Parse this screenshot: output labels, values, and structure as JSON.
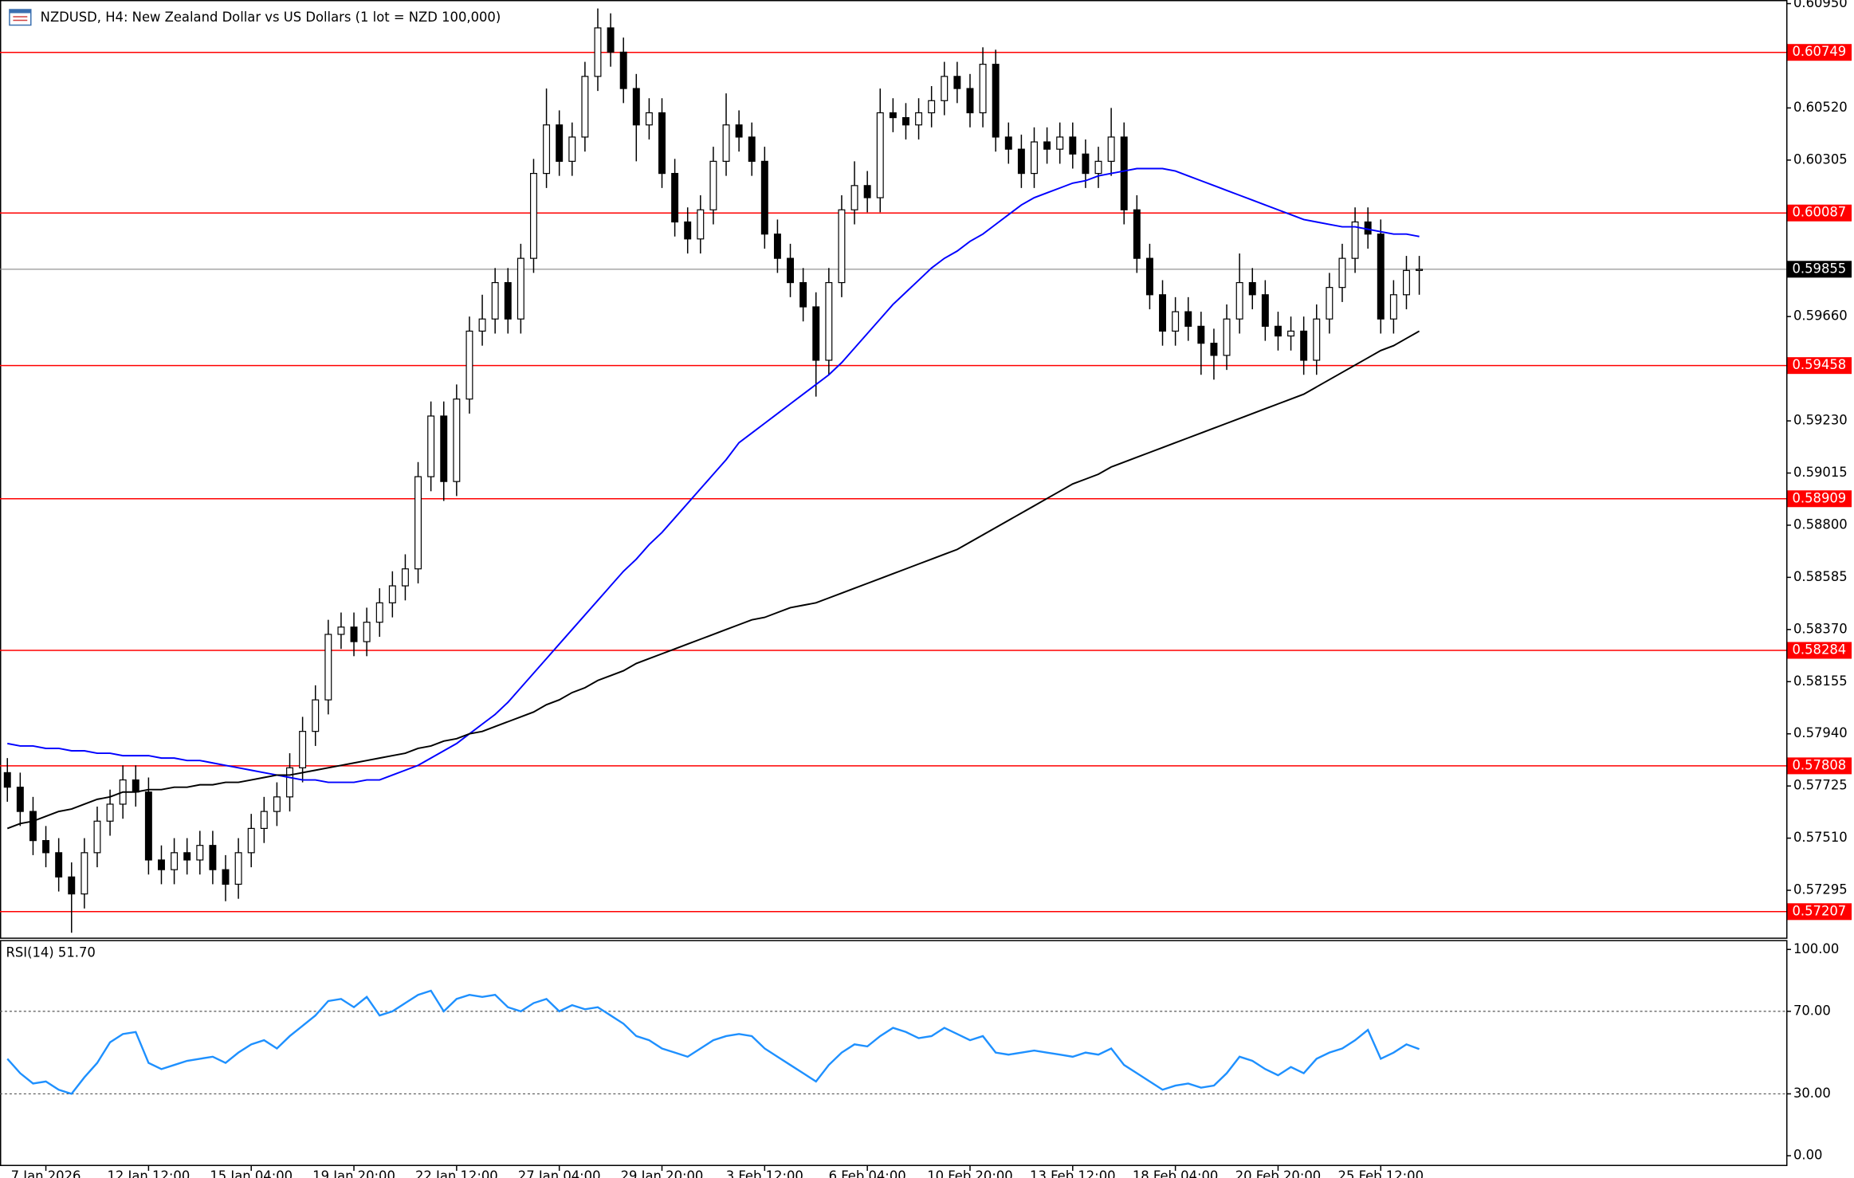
{
  "chart_data": [
    {
      "type": "candlestick",
      "title": "NZDUSD, H4:  New Zealand Dollar vs US Dollars (1 lot = NZD 100,000)",
      "categories": [
        null,
        null,
        null,
        "7 Jan 2026",
        null,
        null,
        null,
        null,
        null,
        null,
        null,
        "12 Jan 12:00",
        null,
        null,
        null,
        null,
        null,
        null,
        null,
        "15 Jan 04:00",
        null,
        null,
        null,
        null,
        null,
        null,
        null,
        "19 Jan 20:00",
        null,
        null,
        null,
        null,
        null,
        null,
        null,
        "22 Jan 12:00",
        null,
        null,
        null,
        null,
        null,
        null,
        null,
        "27 Jan 04:00",
        null,
        null,
        null,
        null,
        null,
        null,
        null,
        "29 Jan 20:00",
        null,
        null,
        null,
        null,
        null,
        null,
        null,
        "3 Feb 12:00",
        null,
        null,
        null,
        null,
        null,
        null,
        null,
        "6 Feb 04:00",
        null,
        null,
        null,
        null,
        null,
        null,
        null,
        "10 Feb 20:00",
        null,
        null,
        null,
        null,
        null,
        null,
        null,
        "13 Feb 12:00",
        null,
        null,
        null,
        null,
        null,
        null,
        null,
        "18 Feb 04:00",
        null,
        null,
        null,
        null,
        null,
        null,
        null,
        "20 Feb 20:00",
        null,
        null,
        null,
        null,
        null,
        null,
        null,
        "25 Feb 12:00",
        null,
        null,
        null
      ],
      "open": [
        0.5778,
        0.5772,
        0.5762,
        0.575,
        0.5745,
        0.5735,
        0.5728,
        0.5745,
        0.5758,
        0.5765,
        0.5775,
        0.577,
        0.5742,
        0.5738,
        0.5745,
        0.5742,
        0.5748,
        0.5738,
        0.5732,
        0.5745,
        0.5755,
        0.5762,
        0.5768,
        0.578,
        0.5795,
        0.5808,
        0.5835,
        0.5838,
        0.5832,
        0.584,
        0.5848,
        0.5855,
        0.5862,
        0.59,
        0.5925,
        0.5898,
        0.5932,
        0.596,
        0.5965,
        0.598,
        0.5965,
        0.599,
        0.6025,
        0.6045,
        0.603,
        0.604,
        0.6065,
        0.6085,
        0.6075,
        0.606,
        0.6045,
        0.605,
        0.6025,
        0.6005,
        0.5998,
        0.601,
        0.603,
        0.6045,
        0.604,
        0.603,
        0.6,
        0.599,
        0.598,
        0.597,
        0.5948,
        0.598,
        0.601,
        0.602,
        0.6015,
        0.605,
        0.6048,
        0.6045,
        0.605,
        0.6055,
        0.6065,
        0.606,
        0.605,
        0.607,
        0.604,
        0.6035,
        0.6025,
        0.6038,
        0.6035,
        0.604,
        0.6033,
        0.6025,
        0.603,
        0.604,
        0.601,
        0.599,
        0.5975,
        0.596,
        0.5968,
        0.5962,
        0.5955,
        0.595,
        0.5965,
        0.598,
        0.5975,
        0.5962,
        0.5958,
        0.596,
        0.5948,
        0.5965,
        0.5978,
        0.599,
        0.6005,
        0.6,
        0.5965,
        0.5975,
        0.5985
      ],
      "high": [
        0.5784,
        0.5778,
        0.5768,
        0.5756,
        0.5751,
        0.5741,
        0.5751,
        0.5764,
        0.5771,
        0.5781,
        0.5781,
        0.5776,
        0.5748,
        0.5751,
        0.5751,
        0.5754,
        0.5754,
        0.5744,
        0.5751,
        0.5761,
        0.5768,
        0.5774,
        0.5786,
        0.5801,
        0.5814,
        0.5841,
        0.5844,
        0.5844,
        0.5846,
        0.5854,
        0.5861,
        0.5868,
        0.5906,
        0.5931,
        0.5931,
        0.5938,
        0.5966,
        0.5975,
        0.5986,
        0.5986,
        0.5996,
        0.6031,
        0.606,
        0.6051,
        0.6046,
        0.6071,
        0.6093,
        0.6091,
        0.6081,
        0.6066,
        0.6056,
        0.6056,
        0.6031,
        0.6011,
        0.6016,
        0.6036,
        0.6058,
        0.6051,
        0.6046,
        0.6036,
        0.6006,
        0.5996,
        0.5986,
        0.5976,
        0.5986,
        0.6016,
        0.603,
        0.6026,
        0.606,
        0.6056,
        0.6054,
        0.6056,
        0.6061,
        0.6071,
        0.6071,
        0.6066,
        0.6077,
        0.6076,
        0.6046,
        0.6041,
        0.6044,
        0.6044,
        0.6046,
        0.6046,
        0.6039,
        0.6036,
        0.6052,
        0.6046,
        0.6016,
        0.5996,
        0.5981,
        0.5974,
        0.5974,
        0.5968,
        0.5961,
        0.5971,
        0.5992,
        0.5986,
        0.5981,
        0.5968,
        0.5966,
        0.5966,
        0.5971,
        0.5984,
        0.5996,
        0.6011,
        0.6011,
        0.6006,
        0.5981,
        0.5991,
        0.5991
      ],
      "low": [
        0.5766,
        0.5756,
        0.5744,
        0.5739,
        0.5729,
        0.5712,
        0.5722,
        0.5739,
        0.5752,
        0.5759,
        0.5764,
        0.5736,
        0.5732,
        0.5732,
        0.5736,
        0.5736,
        0.5732,
        0.5725,
        0.5726,
        0.5739,
        0.5749,
        0.5756,
        0.5762,
        0.5774,
        0.5789,
        0.5802,
        0.5829,
        0.5826,
        0.5826,
        0.5834,
        0.5842,
        0.5849,
        0.5856,
        0.5894,
        0.589,
        0.5892,
        0.5926,
        0.5954,
        0.5959,
        0.5959,
        0.5959,
        0.5984,
        0.6019,
        0.6024,
        0.6024,
        0.6034,
        0.6059,
        0.6069,
        0.6054,
        0.603,
        0.6039,
        0.6019,
        0.5999,
        0.5992,
        0.5992,
        0.6004,
        0.6024,
        0.6034,
        0.6024,
        0.5994,
        0.5984,
        0.5974,
        0.5964,
        0.5933,
        0.5942,
        0.5974,
        0.6004,
        0.6009,
        0.6009,
        0.6042,
        0.6039,
        0.6039,
        0.6044,
        0.6049,
        0.6054,
        0.6044,
        0.6044,
        0.6034,
        0.6029,
        0.6019,
        0.6019,
        0.6029,
        0.6029,
        0.6027,
        0.6019,
        0.6019,
        0.6024,
        0.6004,
        0.5984,
        0.5969,
        0.5954,
        0.5954,
        0.5956,
        0.5942,
        0.594,
        0.5944,
        0.5959,
        0.5969,
        0.5956,
        0.5952,
        0.5952,
        0.5942,
        0.5942,
        0.5959,
        0.5972,
        0.5984,
        0.5994,
        0.5959,
        0.5959,
        0.5969,
        0.5975
      ],
      "close": [
        0.5772,
        0.5762,
        0.575,
        0.5745,
        0.5735,
        0.5728,
        0.5745,
        0.5758,
        0.5765,
        0.5775,
        0.577,
        0.5742,
        0.5738,
        0.5745,
        0.5742,
        0.5748,
        0.5738,
        0.5732,
        0.5745,
        0.5755,
        0.5762,
        0.5768,
        0.578,
        0.5795,
        0.5808,
        0.5835,
        0.5838,
        0.5832,
        0.584,
        0.5848,
        0.5855,
        0.5862,
        0.59,
        0.5925,
        0.5898,
        0.5932,
        0.596,
        0.5965,
        0.598,
        0.5965,
        0.599,
        0.6025,
        0.6045,
        0.603,
        0.604,
        0.6065,
        0.6085,
        0.6075,
        0.606,
        0.6045,
        0.605,
        0.6025,
        0.6005,
        0.5998,
        0.601,
        0.603,
        0.6045,
        0.604,
        0.603,
        0.6,
        0.599,
        0.598,
        0.597,
        0.5948,
        0.598,
        0.601,
        0.602,
        0.6015,
        0.605,
        0.6048,
        0.6045,
        0.605,
        0.6055,
        0.6065,
        0.606,
        0.605,
        0.607,
        0.604,
        0.6035,
        0.6025,
        0.6038,
        0.6035,
        0.604,
        0.6033,
        0.6025,
        0.603,
        0.604,
        0.601,
        0.599,
        0.5975,
        0.596,
        0.5968,
        0.5962,
        0.5955,
        0.595,
        0.5965,
        0.598,
        0.5975,
        0.5962,
        0.5958,
        0.596,
        0.5948,
        0.5965,
        0.5978,
        0.599,
        0.6005,
        0.6,
        0.5965,
        0.5975,
        0.5985,
        0.59855
      ],
      "series": [
        {
          "color": "#0000ff",
          "values": [
            0.579,
            0.5789,
            0.5789,
            0.5788,
            0.5788,
            0.5787,
            0.5787,
            0.5786,
            0.5786,
            0.5785,
            0.5785,
            0.5785,
            0.5784,
            0.5784,
            0.5783,
            0.5783,
            0.5782,
            0.5781,
            0.578,
            0.5779,
            0.5778,
            0.5777,
            0.5776,
            0.5775,
            0.5775,
            0.5774,
            0.5774,
            0.5774,
            0.5775,
            0.5775,
            0.5777,
            0.5779,
            0.5781,
            0.5784,
            0.5787,
            0.579,
            0.5794,
            0.5798,
            0.5802,
            0.5807,
            0.5813,
            0.5819,
            0.5825,
            0.5831,
            0.5837,
            0.5843,
            0.5849,
            0.5855,
            0.5861,
            0.5866,
            0.5872,
            0.5877,
            0.5883,
            0.5889,
            0.5895,
            0.5901,
            0.5907,
            0.5914,
            0.5918,
            0.5922,
            0.5926,
            0.593,
            0.5934,
            0.5938,
            0.5942,
            0.5947,
            0.5953,
            0.5959,
            0.5965,
            0.5971,
            0.5976,
            0.5981,
            0.5986,
            0.599,
            0.5993,
            0.5997,
            0.6,
            0.6004,
            0.6008,
            0.6012,
            0.6015,
            0.6017,
            0.6019,
            0.6021,
            0.6022,
            0.6024,
            0.6025,
            0.6026,
            0.6027,
            0.6027,
            0.6027,
            0.6026,
            0.6024,
            0.6022,
            0.602,
            0.6018,
            0.6016,
            0.6014,
            0.6012,
            0.601,
            0.6008,
            0.6006,
            0.6005,
            0.6004,
            0.6003,
            0.6003,
            0.6002,
            0.6001,
            0.6,
            0.6,
            0.5999
          ]
        },
        {
          "color": "#000000",
          "values": [
            0.5755,
            0.5757,
            0.5758,
            0.576,
            0.5762,
            0.5763,
            0.5765,
            0.5767,
            0.5768,
            0.577,
            0.577,
            0.5771,
            0.5771,
            0.5772,
            0.5772,
            0.5773,
            0.5773,
            0.5774,
            0.5774,
            0.5775,
            0.5776,
            0.5777,
            0.5777,
            0.5778,
            0.5779,
            0.578,
            0.5781,
            0.5782,
            0.5783,
            0.5784,
            0.5785,
            0.5786,
            0.5788,
            0.5789,
            0.5791,
            0.5792,
            0.5794,
            0.5795,
            0.5797,
            0.5799,
            0.5801,
            0.5803,
            0.5806,
            0.5808,
            0.5811,
            0.5813,
            0.5816,
            0.5818,
            0.582,
            0.5823,
            0.5825,
            0.5827,
            0.5829,
            0.5831,
            0.5833,
            0.5835,
            0.5837,
            0.5839,
            0.5841,
            0.5842,
            0.5844,
            0.5846,
            0.5847,
            0.5848,
            0.585,
            0.5852,
            0.5854,
            0.5856,
            0.5858,
            0.586,
            0.5862,
            0.5864,
            0.5866,
            0.5868,
            0.587,
            0.5873,
            0.5876,
            0.5879,
            0.5882,
            0.5885,
            0.5888,
            0.5891,
            0.5894,
            0.5897,
            0.5899,
            0.5901,
            0.5904,
            0.5906,
            0.5908,
            0.591,
            0.5912,
            0.5914,
            0.5916,
            0.5918,
            0.592,
            0.5922,
            0.5924,
            0.5926,
            0.5928,
            0.593,
            0.5932,
            0.5934,
            0.5937,
            0.594,
            0.5943,
            0.5946,
            0.5949,
            0.5952,
            0.5954,
            0.5957,
            0.596
          ]
        }
      ],
      "levels": [
        {
          "value": 0.60749,
          "label": "0.60749"
        },
        {
          "value": 0.60087,
          "label": "0.60087"
        },
        {
          "value": 0.59458,
          "label": "0.59458"
        },
        {
          "value": 0.58909,
          "label": "0.58909"
        },
        {
          "value": 0.58284,
          "label": "0.58284"
        },
        {
          "value": 0.57808,
          "label": "0.57808"
        },
        {
          "value": 0.57207,
          "label": "0.57207"
        }
      ],
      "level_color": "#ff0000",
      "current_price": {
        "value": 0.59855,
        "label": "0.59855"
      },
      "ylim": [
        0.57095,
        0.6096
      ],
      "yticks": [
        {
          "value": 0.6095,
          "label": "0.60950"
        },
        {
          "value": 0.6052,
          "label": "0.60520"
        },
        {
          "value": 0.60305,
          "label": "0.60305"
        },
        {
          "value": 0.5966,
          "label": "0.59660"
        },
        {
          "value": 0.5923,
          "label": "0.59230"
        },
        {
          "value": 0.59015,
          "label": "0.59015"
        },
        {
          "value": 0.588,
          "label": "0.58800"
        },
        {
          "value": 0.58585,
          "label": "0.58585"
        },
        {
          "value": 0.5837,
          "label": "0.58370"
        },
        {
          "value": 0.58155,
          "label": "0.58155"
        },
        {
          "value": 0.5794,
          "label": "0.57940"
        },
        {
          "value": 0.57725,
          "label": "0.57725"
        },
        {
          "value": 0.5751,
          "label": "0.57510"
        },
        {
          "value": 0.57295,
          "label": "0.57295"
        }
      ]
    },
    {
      "type": "line",
      "title": "RSI(14) 51.70",
      "series": [
        {
          "color": "#1e90ff",
          "values": [
            47,
            40,
            35,
            36,
            32,
            30,
            38,
            45,
            55,
            59,
            60,
            45,
            42,
            44,
            46,
            47,
            48,
            45,
            50,
            54,
            56,
            52,
            58,
            63,
            68,
            75,
            76,
            72,
            77,
            68,
            70,
            74,
            78,
            80,
            70,
            76,
            78,
            77,
            78,
            72,
            70,
            74,
            76,
            70,
            73,
            71,
            72,
            68,
            64,
            58,
            56,
            52,
            50,
            48,
            52,
            56,
            58,
            59,
            58,
            52,
            48,
            44,
            40,
            36,
            44,
            50,
            54,
            53,
            58,
            62,
            60,
            57,
            58,
            62,
            59,
            56,
            58,
            50,
            49,
            50,
            51,
            50,
            49,
            48,
            50,
            49,
            52,
            44,
            40,
            36,
            32,
            34,
            35,
            33,
            34,
            40,
            48,
            46,
            42,
            39,
            43,
            40,
            47,
            50,
            52,
            56,
            61,
            47,
            50,
            54,
            51.7
          ]
        }
      ],
      "levels": [
        70,
        30
      ],
      "ylim": [
        -5,
        104
      ],
      "yticks": [
        {
          "value": 100,
          "label": "100.00"
        },
        {
          "value": 70,
          "label": "70.00"
        },
        {
          "value": 30,
          "label": "30.00"
        },
        {
          "value": 0,
          "label": "0.00"
        }
      ]
    }
  ]
}
